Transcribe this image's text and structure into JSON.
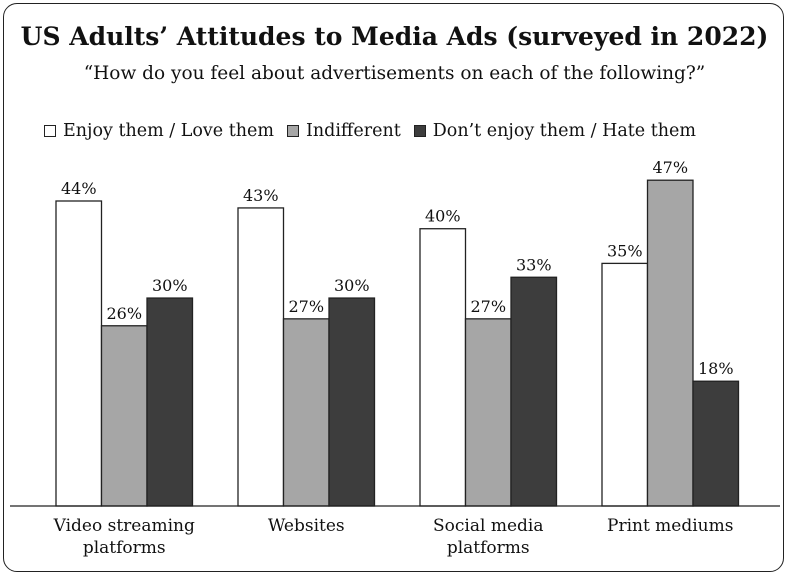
{
  "chart_data": {
    "type": "bar",
    "title": "US Adults’ Attitudes to Media Ads (surveyed in 2022)",
    "subtitle": "“How do you feel about advertisements on each of the following?”",
    "categories": [
      [
        "Video streaming",
        "platforms"
      ],
      [
        "Websites"
      ],
      [
        "Social media",
        "platforms"
      ],
      [
        "Print mediums"
      ]
    ],
    "series": [
      {
        "name": "Enjoy them / Love them",
        "values": [
          44,
          43,
          40,
          35
        ],
        "color": "#ffffff"
      },
      {
        "name": "Indifferent",
        "values": [
          26,
          27,
          27,
          47
        ],
        "color": "#a6a6a6"
      },
      {
        "name": "Don’t enjoy them / Hate them",
        "values": [
          30,
          30,
          33,
          18
        ],
        "color": "#3d3d3d"
      }
    ],
    "value_suffix": "%",
    "ylim": [
      0,
      48
    ],
    "legend_position": "top-left",
    "grid": false
  }
}
